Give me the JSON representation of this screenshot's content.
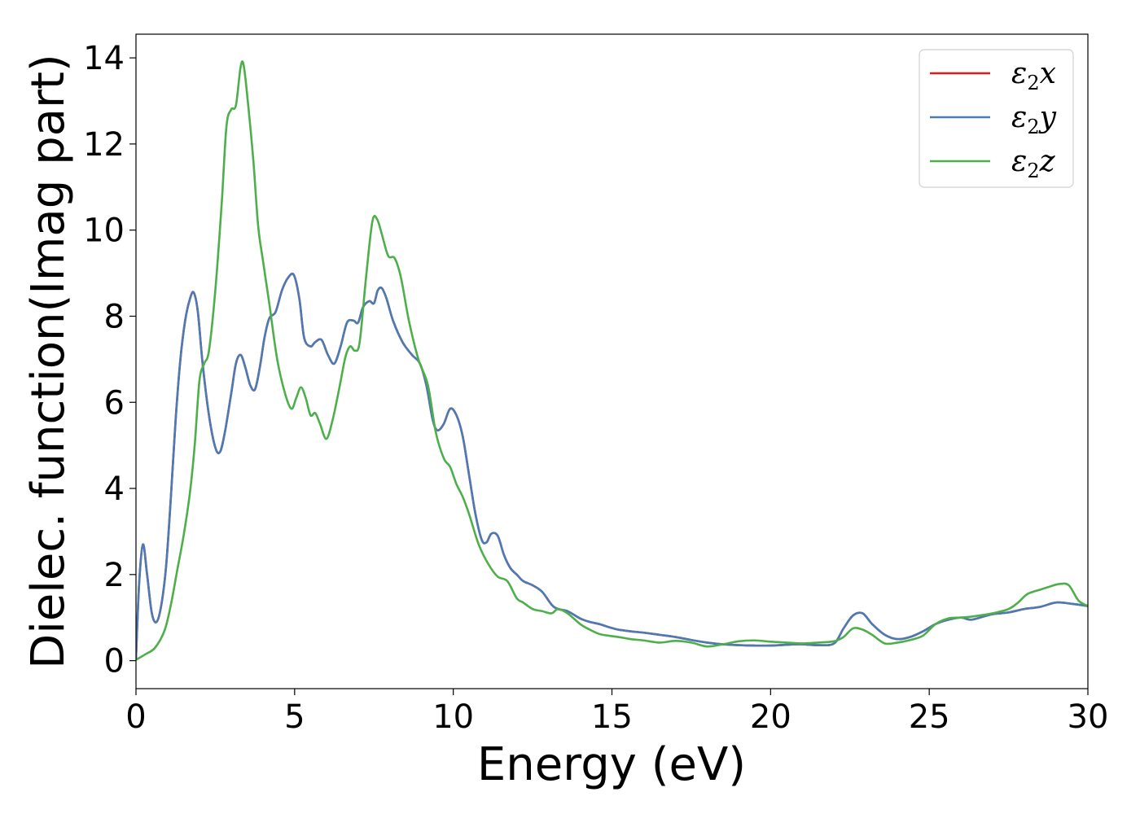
{
  "chart_data": {
    "type": "line",
    "xlabel": "Energy (eV)",
    "ylabel": "Dielec. function(Imag part)",
    "xlim": [
      0,
      30
    ],
    "ylim": [
      -0.65,
      14.55
    ],
    "xticks": [
      0,
      5,
      10,
      15,
      20,
      25,
      30
    ],
    "yticks": [
      0,
      2,
      4,
      6,
      8,
      10,
      12,
      14
    ],
    "grid": false,
    "legend_position": "top-right",
    "series": [
      {
        "name": "ε2x",
        "legend_base": "ε",
        "legend_sub": "2",
        "legend_var": "x",
        "color": "#e41a1c",
        "x": [
          0,
          0.1,
          0.22,
          0.35,
          0.5,
          0.65,
          0.8,
          0.95,
          1.1,
          1.25,
          1.4,
          1.55,
          1.7,
          1.82,
          1.95,
          2.1,
          2.3,
          2.5,
          2.65,
          2.8,
          3.0,
          3.15,
          3.3,
          3.45,
          3.6,
          3.75,
          3.9,
          4.05,
          4.2,
          4.4,
          4.6,
          4.8,
          4.98,
          5.15,
          5.3,
          5.5,
          5.65,
          5.85,
          6.05,
          6.25,
          6.45,
          6.65,
          6.85,
          7.0,
          7.15,
          7.35,
          7.5,
          7.62,
          7.75,
          7.9,
          8.1,
          8.4,
          8.7,
          8.95,
          9.15,
          9.35,
          9.5,
          9.7,
          9.9,
          10.1,
          10.3,
          10.5,
          10.7,
          10.9,
          11.05,
          11.2,
          11.4,
          11.6,
          11.8,
          12.0,
          12.2,
          12.5,
          12.8,
          13.1,
          13.3,
          13.6,
          14.0,
          14.3,
          14.6,
          14.9,
          15.2,
          15.6,
          16.0,
          16.5,
          17.0,
          17.5,
          18.0,
          18.5,
          19.0,
          19.5,
          20.0,
          20.5,
          21.0,
          21.5,
          22.0,
          22.3,
          22.6,
          22.9,
          23.2,
          23.6,
          24.0,
          24.4,
          24.8,
          25.2,
          25.6,
          26.0,
          26.3,
          26.6,
          27.0,
          27.5,
          28.0,
          28.5,
          29.0,
          29.5,
          30.0
        ],
        "y": [
          0.05,
          1.8,
          2.7,
          2.0,
          1.1,
          0.9,
          1.3,
          2.2,
          3.8,
          5.6,
          7.0,
          7.9,
          8.4,
          8.55,
          8.1,
          6.9,
          5.7,
          4.95,
          4.85,
          5.3,
          6.2,
          6.9,
          7.1,
          6.8,
          6.4,
          6.3,
          6.8,
          7.5,
          7.95,
          8.1,
          8.6,
          8.9,
          8.95,
          8.4,
          7.5,
          7.3,
          7.4,
          7.45,
          7.1,
          6.9,
          7.3,
          7.85,
          7.9,
          7.85,
          8.2,
          8.35,
          8.3,
          8.6,
          8.65,
          8.4,
          7.9,
          7.4,
          7.1,
          6.9,
          6.4,
          5.6,
          5.35,
          5.5,
          5.85,
          5.7,
          5.2,
          4.3,
          3.4,
          2.8,
          2.75,
          2.95,
          2.9,
          2.45,
          2.15,
          2.0,
          1.85,
          1.75,
          1.6,
          1.3,
          1.2,
          1.15,
          0.98,
          0.9,
          0.85,
          0.78,
          0.72,
          0.68,
          0.65,
          0.6,
          0.55,
          0.48,
          0.42,
          0.38,
          0.36,
          0.35,
          0.35,
          0.37,
          0.38,
          0.36,
          0.4,
          0.75,
          1.05,
          1.1,
          0.85,
          0.6,
          0.5,
          0.55,
          0.68,
          0.85,
          0.95,
          1.0,
          0.95,
          1.0,
          1.08,
          1.12,
          1.2,
          1.25,
          1.35,
          1.32,
          1.27
        ]
      },
      {
        "name": "ε2y",
        "legend_base": "ε",
        "legend_sub": "2",
        "legend_var": "y",
        "color": "#4a7bb5",
        "x": [
          0,
          0.1,
          0.22,
          0.35,
          0.5,
          0.65,
          0.8,
          0.95,
          1.1,
          1.25,
          1.4,
          1.55,
          1.7,
          1.82,
          1.95,
          2.1,
          2.3,
          2.5,
          2.65,
          2.8,
          3.0,
          3.15,
          3.3,
          3.45,
          3.6,
          3.75,
          3.9,
          4.05,
          4.2,
          4.4,
          4.6,
          4.8,
          4.98,
          5.15,
          5.3,
          5.5,
          5.65,
          5.85,
          6.05,
          6.25,
          6.45,
          6.65,
          6.85,
          7.0,
          7.15,
          7.35,
          7.5,
          7.62,
          7.75,
          7.9,
          8.1,
          8.4,
          8.7,
          8.95,
          9.15,
          9.35,
          9.5,
          9.7,
          9.9,
          10.1,
          10.3,
          10.5,
          10.7,
          10.9,
          11.05,
          11.2,
          11.4,
          11.6,
          11.8,
          12.0,
          12.2,
          12.5,
          12.8,
          13.1,
          13.3,
          13.6,
          14.0,
          14.3,
          14.6,
          14.9,
          15.2,
          15.6,
          16.0,
          16.5,
          17.0,
          17.5,
          18.0,
          18.5,
          19.0,
          19.5,
          20.0,
          20.5,
          21.0,
          21.5,
          22.0,
          22.3,
          22.6,
          22.9,
          23.2,
          23.6,
          24.0,
          24.4,
          24.8,
          25.2,
          25.6,
          26.0,
          26.3,
          26.6,
          27.0,
          27.5,
          28.0,
          28.5,
          29.0,
          29.5,
          30.0
        ],
        "y": [
          0.05,
          1.8,
          2.7,
          2.0,
          1.1,
          0.9,
          1.3,
          2.2,
          3.8,
          5.6,
          7.0,
          7.9,
          8.4,
          8.55,
          8.1,
          6.9,
          5.7,
          4.95,
          4.85,
          5.3,
          6.2,
          6.9,
          7.1,
          6.8,
          6.4,
          6.3,
          6.8,
          7.5,
          7.95,
          8.1,
          8.6,
          8.9,
          8.95,
          8.4,
          7.5,
          7.3,
          7.4,
          7.45,
          7.1,
          6.9,
          7.3,
          7.85,
          7.9,
          7.85,
          8.2,
          8.35,
          8.3,
          8.6,
          8.65,
          8.4,
          7.9,
          7.4,
          7.1,
          6.9,
          6.4,
          5.6,
          5.35,
          5.5,
          5.85,
          5.7,
          5.2,
          4.3,
          3.4,
          2.8,
          2.75,
          2.95,
          2.9,
          2.45,
          2.15,
          2.0,
          1.85,
          1.75,
          1.6,
          1.3,
          1.2,
          1.15,
          0.98,
          0.9,
          0.85,
          0.78,
          0.72,
          0.68,
          0.65,
          0.6,
          0.55,
          0.48,
          0.42,
          0.38,
          0.36,
          0.35,
          0.35,
          0.37,
          0.38,
          0.36,
          0.4,
          0.75,
          1.05,
          1.1,
          0.85,
          0.6,
          0.5,
          0.55,
          0.68,
          0.85,
          0.95,
          1.0,
          0.95,
          1.0,
          1.08,
          1.12,
          1.2,
          1.25,
          1.35,
          1.32,
          1.27
        ]
      },
      {
        "name": "ε2z",
        "legend_base": "ε",
        "legend_sub": "2",
        "legend_var": "z",
        "color": "#4daf4a",
        "x": [
          0,
          0.3,
          0.6,
          0.9,
          1.1,
          1.3,
          1.5,
          1.7,
          1.85,
          2.0,
          2.15,
          2.3,
          2.5,
          2.7,
          2.85,
          3.0,
          3.15,
          3.3,
          3.4,
          3.55,
          3.7,
          3.85,
          4.0,
          4.2,
          4.45,
          4.7,
          4.9,
          5.05,
          5.2,
          5.35,
          5.5,
          5.65,
          5.8,
          6.0,
          6.2,
          6.4,
          6.6,
          6.75,
          6.9,
          7.05,
          7.25,
          7.45,
          7.6,
          7.75,
          7.95,
          8.15,
          8.35,
          8.6,
          8.9,
          9.2,
          9.45,
          9.7,
          9.9,
          10.1,
          10.3,
          10.5,
          10.8,
          11.1,
          11.4,
          11.7,
          12.0,
          12.2,
          12.5,
          12.8,
          13.1,
          13.3,
          13.6,
          14.0,
          14.3,
          14.6,
          14.9,
          15.2,
          15.6,
          16.0,
          16.5,
          17.0,
          17.5,
          18.0,
          18.5,
          19.0,
          19.5,
          20.0,
          20.5,
          21.0,
          21.5,
          22.0,
          22.3,
          22.6,
          22.9,
          23.2,
          23.6,
          24.0,
          24.4,
          24.8,
          25.2,
          25.6,
          26.0,
          26.3,
          26.6,
          27.0,
          27.5,
          27.8,
          28.1,
          28.5,
          28.8,
          29.1,
          29.4,
          29.7,
          30.0
        ],
        "y": [
          0.02,
          0.15,
          0.3,
          0.7,
          1.3,
          2.1,
          2.9,
          3.9,
          5.0,
          6.5,
          6.9,
          7.2,
          8.6,
          10.6,
          12.4,
          12.8,
          12.9,
          13.8,
          13.8,
          12.8,
          11.6,
          10.1,
          9.3,
          8.3,
          7.0,
          6.2,
          5.85,
          6.1,
          6.35,
          6.1,
          5.7,
          5.75,
          5.5,
          5.15,
          5.6,
          6.3,
          7.05,
          7.3,
          7.2,
          7.4,
          8.9,
          10.2,
          10.25,
          9.9,
          9.4,
          9.35,
          8.9,
          7.9,
          7.0,
          6.4,
          5.3,
          4.7,
          4.5,
          4.1,
          3.8,
          3.4,
          2.7,
          2.25,
          1.95,
          1.85,
          1.45,
          1.35,
          1.2,
          1.15,
          1.1,
          1.2,
          1.1,
          0.85,
          0.72,
          0.62,
          0.58,
          0.55,
          0.5,
          0.47,
          0.42,
          0.46,
          0.42,
          0.33,
          0.38,
          0.45,
          0.47,
          0.44,
          0.42,
          0.4,
          0.42,
          0.45,
          0.55,
          0.75,
          0.72,
          0.6,
          0.4,
          0.42,
          0.48,
          0.58,
          0.85,
          0.98,
          1.0,
          1.02,
          1.05,
          1.1,
          1.2,
          1.35,
          1.55,
          1.65,
          1.72,
          1.78,
          1.75,
          1.4,
          1.27
        ]
      }
    ]
  }
}
